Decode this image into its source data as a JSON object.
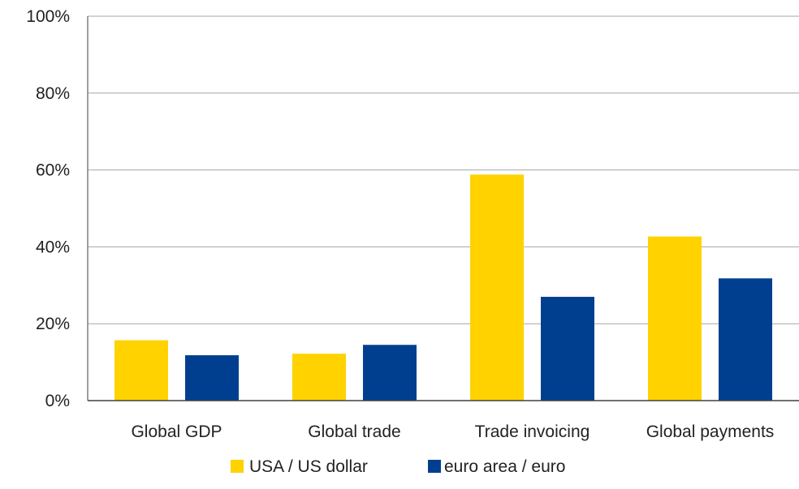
{
  "chart_data": {
    "type": "bar",
    "categories": [
      "Global GDP",
      "Global trade",
      "Trade invoicing",
      "Global payments"
    ],
    "series": [
      {
        "name": "USA / US dollar",
        "color": "#ffd200",
        "values": [
          15.7,
          12.2,
          58.8,
          42.7
        ]
      },
      {
        "name": "euro area / euro",
        "color": "#003f8f",
        "values": [
          11.8,
          14.5,
          27.0,
          31.8
        ]
      }
    ],
    "ylim": [
      0,
      100
    ],
    "yticks": [
      0,
      20,
      40,
      60,
      80,
      100
    ],
    "ytick_labels": [
      "0%",
      "20%",
      "40%",
      "60%",
      "80%",
      "100%"
    ],
    "grid": true,
    "legend_position": "bottom"
  }
}
